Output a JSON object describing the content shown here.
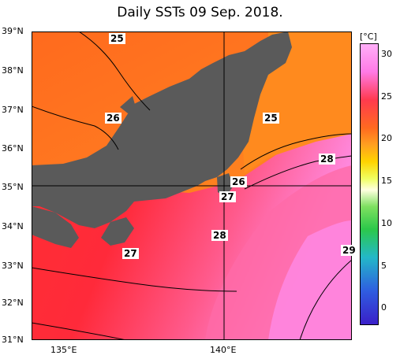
{
  "title": "Daily SSTs 09 Sep. 2018.",
  "latitudes": [
    {
      "label": "39°N"
    },
    {
      "label": "38°N"
    },
    {
      "label": "37°N"
    },
    {
      "label": "36°N"
    },
    {
      "label": "35°N"
    },
    {
      "label": "34°N"
    },
    {
      "label": "33°N"
    },
    {
      "label": "32°N"
    },
    {
      "label": "31°N"
    }
  ],
  "longitudes": [
    {
      "label": "135°E"
    },
    {
      "label": "140°E"
    }
  ],
  "contour_labels": [
    {
      "text": "25"
    },
    {
      "text": "26"
    },
    {
      "text": "25"
    },
    {
      "text": "28"
    },
    {
      "text": "26"
    },
    {
      "text": "27"
    },
    {
      "text": "28"
    },
    {
      "text": "27"
    },
    {
      "text": "29"
    }
  ],
  "colorbar": {
    "unit": "[°C]",
    "ticks": [
      "30",
      "25",
      "20",
      "15",
      "10",
      "5",
      "0"
    ],
    "colors": [
      "#ff9cf6",
      "#ff3a4e",
      "#ff8a20",
      "#ffd400",
      "#e8ff6a",
      "#2cd64a",
      "#23b8c8",
      "#2f5de0",
      "#3a1fc8"
    ]
  },
  "colors": {
    "land": "#5a5a5a",
    "sst_25": "#ff8a1e",
    "sst_26": "#ff5a1e",
    "sst_27": "#ff2a2a",
    "sst_28": "#ff4a7a",
    "sst_29": "#ff7ad0"
  }
}
